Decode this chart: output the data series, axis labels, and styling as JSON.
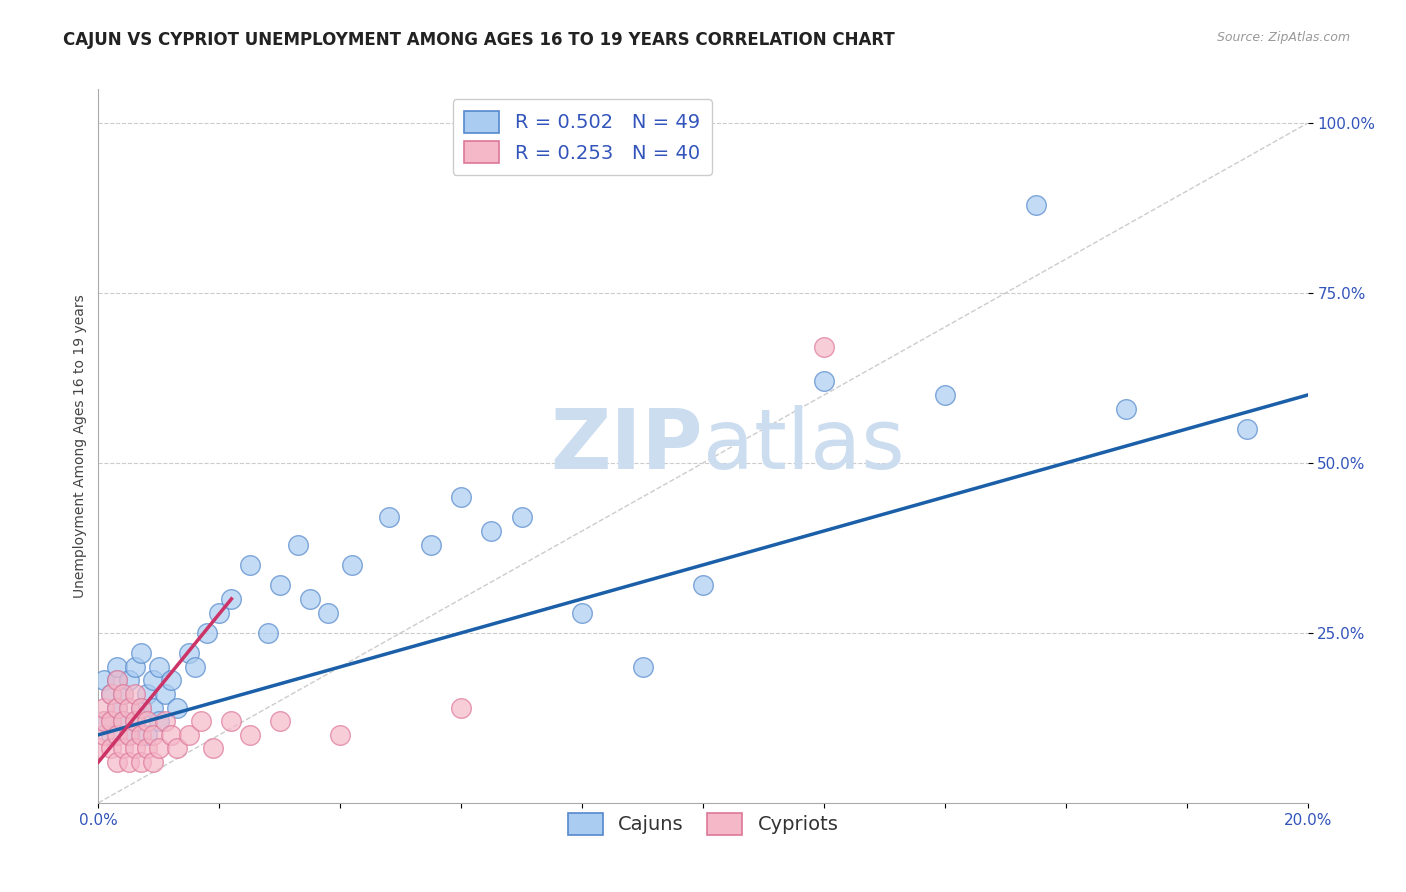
{
  "title": "CAJUN VS CYPRIOT UNEMPLOYMENT AMONG AGES 16 TO 19 YEARS CORRELATION CHART",
  "source_text": "Source: ZipAtlas.com",
  "ylabel": "Unemployment Among Ages 16 to 19 years",
  "xlim": [
    0.0,
    0.2
  ],
  "ylim": [
    0.0,
    1.05
  ],
  "cajun_R": 0.502,
  "cajun_N": 49,
  "cypriot_R": 0.253,
  "cypriot_N": 40,
  "cajun_color": "#aaccf0",
  "cajun_edge_color": "#5588cc",
  "cajun_line_color": "#1a5fa8",
  "cypriot_color": "#f5b8c8",
  "cypriot_edge_color": "#dd7799",
  "cypriot_line_color": "#cc3366",
  "watermark_color": "#ccddf0",
  "background_color": "#ffffff",
  "grid_color": "#cccccc",
  "diag_color": "#cccccc",
  "tick_color": "#3355bb",
  "title_color": "#222222",
  "ylabel_color": "#444444",
  "source_color": "#999999",
  "cajun_x": [
    0.001,
    0.001,
    0.002,
    0.002,
    0.003,
    0.003,
    0.003,
    0.004,
    0.004,
    0.005,
    0.005,
    0.006,
    0.006,
    0.007,
    0.007,
    0.008,
    0.008,
    0.009,
    0.009,
    0.01,
    0.01,
    0.011,
    0.012,
    0.013,
    0.015,
    0.016,
    0.018,
    0.02,
    0.022,
    0.025,
    0.028,
    0.03,
    0.033,
    0.035,
    0.038,
    0.042,
    0.048,
    0.055,
    0.06,
    0.065,
    0.07,
    0.08,
    0.09,
    0.1,
    0.12,
    0.14,
    0.155,
    0.17,
    0.19
  ],
  "cajun_y": [
    0.12,
    0.18,
    0.1,
    0.16,
    0.14,
    0.18,
    0.2,
    0.12,
    0.16,
    0.1,
    0.18,
    0.12,
    0.2,
    0.14,
    0.22,
    0.1,
    0.16,
    0.18,
    0.14,
    0.12,
    0.2,
    0.16,
    0.18,
    0.14,
    0.22,
    0.2,
    0.25,
    0.28,
    0.3,
    0.35,
    0.25,
    0.32,
    0.38,
    0.3,
    0.28,
    0.35,
    0.42,
    0.38,
    0.45,
    0.4,
    0.42,
    0.28,
    0.2,
    0.32,
    0.62,
    0.6,
    0.88,
    0.58,
    0.55
  ],
  "cypriot_x": [
    0.0,
    0.001,
    0.001,
    0.001,
    0.002,
    0.002,
    0.002,
    0.003,
    0.003,
    0.003,
    0.003,
    0.004,
    0.004,
    0.004,
    0.005,
    0.005,
    0.005,
    0.006,
    0.006,
    0.006,
    0.007,
    0.007,
    0.007,
    0.008,
    0.008,
    0.009,
    0.009,
    0.01,
    0.011,
    0.012,
    0.013,
    0.015,
    0.017,
    0.019,
    0.022,
    0.025,
    0.03,
    0.04,
    0.06,
    0.12
  ],
  "cypriot_y": [
    0.08,
    0.1,
    0.12,
    0.14,
    0.08,
    0.12,
    0.16,
    0.06,
    0.1,
    0.14,
    0.18,
    0.08,
    0.12,
    0.16,
    0.06,
    0.1,
    0.14,
    0.08,
    0.12,
    0.16,
    0.06,
    0.1,
    0.14,
    0.08,
    0.12,
    0.06,
    0.1,
    0.08,
    0.12,
    0.1,
    0.08,
    0.1,
    0.12,
    0.08,
    0.12,
    0.1,
    0.12,
    0.1,
    0.14,
    0.67
  ],
  "cajun_line_x0": 0.0,
  "cajun_line_y0": 0.1,
  "cajun_line_x1": 0.2,
  "cajun_line_y1": 0.6,
  "cypriot_line_x0": 0.0,
  "cypriot_line_y0": 0.06,
  "cypriot_line_x1": 0.022,
  "cypriot_line_y1": 0.3,
  "title_fontsize": 12,
  "axis_fontsize": 10,
  "tick_fontsize": 11,
  "legend_fontsize": 14,
  "source_fontsize": 9
}
